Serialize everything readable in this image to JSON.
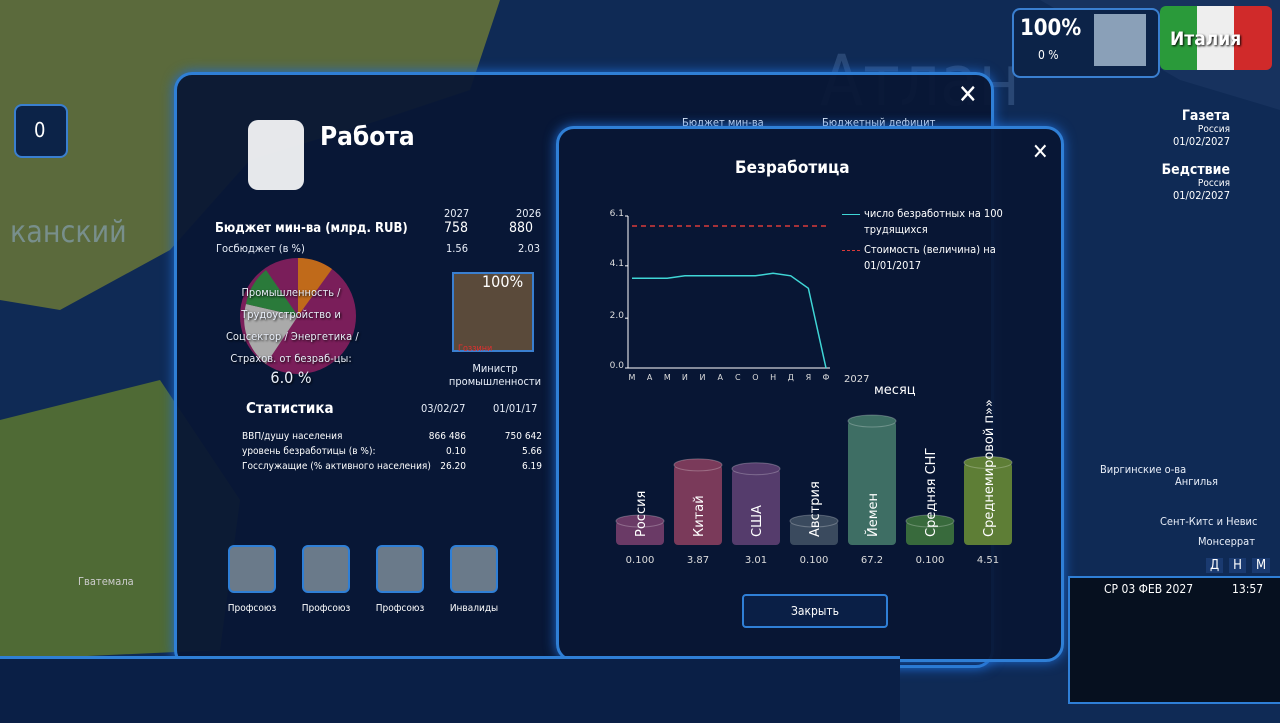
{
  "hud": {
    "approval": "100%",
    "approval_change": "0 %",
    "country": "Италия",
    "counter": "0",
    "news": [
      {
        "title": "Газета",
        "country": "Россия",
        "date": "01/02/2027"
      },
      {
        "title": "Бедствие",
        "country": "Россия",
        "date": "01/02/2027"
      }
    ]
  },
  "map_labels": [
    "Атлан",
    "канский",
    "Виргинские о-ва",
    "Ангилья",
    "Сент-Китс и Невис",
    "Монсеррат",
    "Гватемала"
  ],
  "panel": {
    "title": "Работа",
    "tabs": [
      "Бюджет мин-ва",
      "Бюджетный дефицит"
    ],
    "budget": {
      "label": "Бюджет мин-ва (млрд. RUB)",
      "years": [
        "2027",
        "2026"
      ],
      "values": [
        "758",
        "880"
      ],
      "share_label": "Госбюджет (в %)",
      "shares": [
        "1.56",
        "2.03"
      ]
    },
    "pie": {
      "lines": [
        "Промышленность /",
        "Трудоустройство и",
        "Соцсектор / Энергетика /",
        "Страхов. от безраб-цы:"
      ],
      "percent": "6.0 %"
    },
    "minister": {
      "approval": "100%",
      "name": "Гоззини",
      "role": "Министр промышленности"
    },
    "stats": {
      "title": "Статистика",
      "dates": [
        "03/02/27",
        "01/01/17"
      ],
      "rows": [
        [
          "ВВП/душу населения",
          "866 486",
          "750 642"
        ],
        [
          "уровень безработицы (в %):",
          "0.10",
          "5.66"
        ],
        [
          "Госслужащие (% активного населения)",
          "26.20",
          "6.19"
        ]
      ]
    },
    "groups": [
      "Профсоюз",
      "Профсоюз",
      "Профсоюз",
      "Инвалиды"
    ]
  },
  "popup": {
    "title": "Безработица",
    "close": "Закрыть",
    "line_chart": {
      "type": "line",
      "x": [
        "М",
        "А",
        "М",
        "И",
        "И",
        "А",
        "С",
        "О",
        "Н",
        "Д",
        "Я",
        "Ф"
      ],
      "x_year": "2027",
      "xlabel": "месяц",
      "ylim": [
        0,
        6.1
      ],
      "yticks": [
        {
          "value": 0,
          "label": "0.0"
        },
        {
          "value": 2,
          "label": "2.0"
        },
        4.1,
        6.1
      ],
      "series": [
        {
          "name": "число безработных на 100 трудящихся",
          "color": "#3fd6d6",
          "values": [
            3.6,
            3.6,
            3.6,
            3.7,
            3.7,
            3.7,
            3.7,
            3.7,
            3.8,
            3.7,
            3.2,
            0.0
          ]
        },
        {
          "name": "Стоимость (величина) на 01/01/2017",
          "color": "#d83a3a",
          "dashed": true,
          "values": [
            5.7,
            5.7,
            5.7,
            5.7,
            5.7,
            5.7,
            5.7,
            5.7,
            5.7,
            5.7,
            5.7,
            5.7
          ]
        }
      ]
    },
    "bar_chart": {
      "type": "bar",
      "log_scale": true,
      "categories": [
        "Россия",
        "Китай",
        "США",
        "Австрия",
        "Йемен",
        "Средняя СНГ",
        "Среднемировой п»»"
      ],
      "values": [
        0.1,
        3.87,
        3.01,
        0.1,
        67.2,
        0.1,
        4.51
      ],
      "value_labels": [
        "0.100",
        "3.87",
        "3.01",
        "0.100",
        "67.2",
        "0.100",
        "4.51"
      ],
      "colors": [
        "#6a3a66",
        "#7a3a5a",
        "#553c6c",
        "#3a4a5e",
        "#3e6e64",
        "#386a3c",
        "#5e7e36"
      ]
    }
  },
  "clock": {
    "date": "СР 03 ФЕВ 2027",
    "time": "13:57",
    "speeds": [
      "Д",
      "Н",
      "М"
    ]
  }
}
